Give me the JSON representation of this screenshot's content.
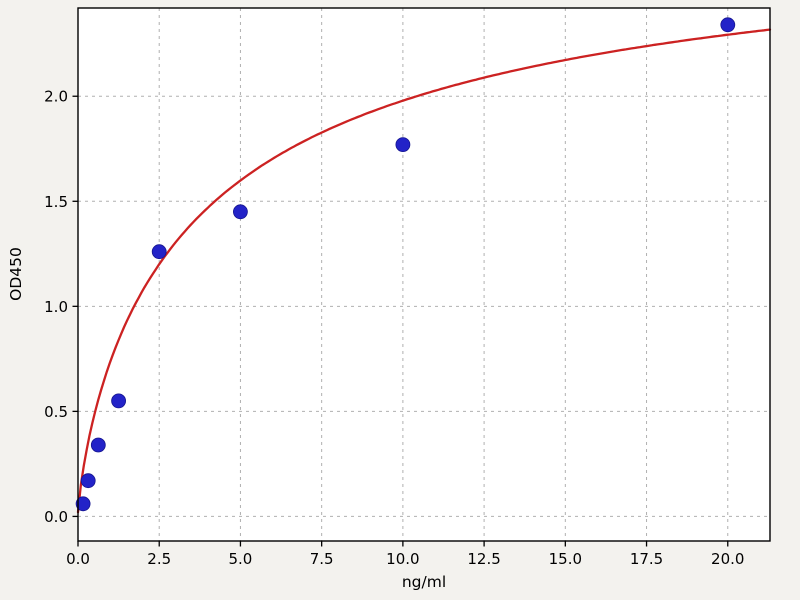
{
  "chart_data": {
    "type": "scatter",
    "title": "",
    "xlabel": "ng/ml",
    "ylabel": "OD450",
    "xlim": [
      0,
      21.3
    ],
    "ylim": [
      -0.117,
      2.42
    ],
    "xticks": [
      0.0,
      2.5,
      5.0,
      7.5,
      10.0,
      12.5,
      15.0,
      17.5,
      20.0
    ],
    "xtick_labels": [
      "0.0",
      "2.5",
      "5.0",
      "7.5",
      "10.0",
      "12.5",
      "15.0",
      "17.5",
      "20.0"
    ],
    "yticks": [
      0.0,
      0.5,
      1.0,
      1.5,
      2.0
    ],
    "ytick_labels": [
      "0.0",
      "0.5",
      "1.0",
      "1.5",
      "2.0"
    ],
    "grid": true,
    "legend": "none",
    "series": [
      {
        "name": "standard-points",
        "type": "scatter",
        "x": [
          0.156,
          0.313,
          0.625,
          1.25,
          2.5,
          5,
          10,
          20
        ],
        "y": [
          0.06,
          0.17,
          0.34,
          0.55,
          1.26,
          1.45,
          1.77,
          2.34
        ]
      },
      {
        "name": "fit-curve",
        "type": "line",
        "fit": {
          "model": "hill",
          "vmax": 2.9,
          "k": 4.0,
          "h": 0.8,
          "offset": 0.02
        },
        "x_range": [
          0,
          21.3
        ]
      }
    ],
    "colors": {
      "points": "#2323c8",
      "points_edge": "#15158f",
      "curve": "#cc2222",
      "grid": "#b0b0b0",
      "figure_bg": "#f3f2ee",
      "plot_bg": "#ffffff",
      "spine": "#000000",
      "text": "#000000"
    }
  }
}
